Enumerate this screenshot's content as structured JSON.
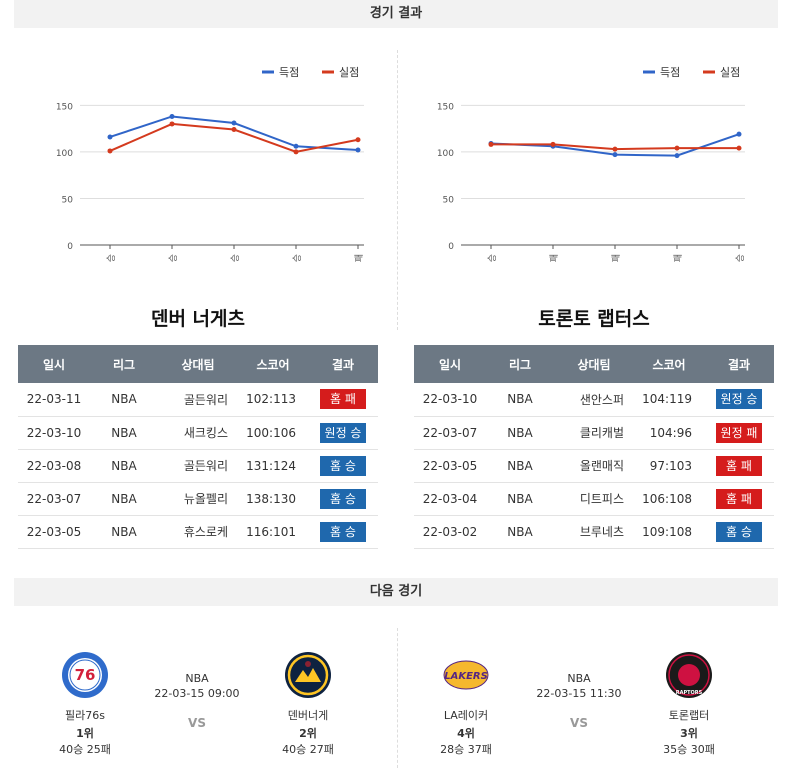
{
  "sections": {
    "results_title": "경기 결과",
    "next_title": "다음 경기"
  },
  "colors": {
    "scored": "#3065c8",
    "allowed": "#d43a1e",
    "win_badge": "#1f68ad",
    "loss_badge": "#d51c1c"
  },
  "chart_data": [
    {
      "type": "line",
      "categories": [
        "승",
        "승",
        "승",
        "승",
        "패"
      ],
      "series": [
        {
          "name": "득점",
          "values": [
            116,
            138,
            131,
            106,
            102
          ]
        },
        {
          "name": "실점",
          "values": [
            101,
            130,
            124,
            100,
            113
          ]
        }
      ],
      "yticks": [
        0,
        50,
        100,
        150
      ],
      "ylim": [
        0,
        160
      ],
      "legend": "top-right",
      "grid": true
    },
    {
      "type": "line",
      "categories": [
        "승",
        "패",
        "패",
        "패",
        "승"
      ],
      "series": [
        {
          "name": "득점",
          "values": [
            109,
            106,
            97,
            96,
            119
          ]
        },
        {
          "name": "실점",
          "values": [
            108,
            108,
            103,
            104,
            104
          ]
        }
      ],
      "yticks": [
        0,
        50,
        100,
        150
      ],
      "ylim": [
        0,
        160
      ],
      "legend": "top-right",
      "grid": true
    }
  ],
  "table_headers": [
    "일시",
    "리그",
    "상대팀",
    "스코어",
    "결과"
  ],
  "teams": [
    {
      "name": "덴버 너게츠",
      "games": [
        {
          "date": "22-03-11",
          "league": "NBA",
          "opponent": "골든워리",
          "score": "102:113",
          "result": "홈 패",
          "win": false
        },
        {
          "date": "22-03-10",
          "league": "NBA",
          "opponent": "새크킹스",
          "score": "100:106",
          "result": "원정 승",
          "win": true
        },
        {
          "date": "22-03-08",
          "league": "NBA",
          "opponent": "골든워리",
          "score": "131:124",
          "result": "홈 승",
          "win": true
        },
        {
          "date": "22-03-07",
          "league": "NBA",
          "opponent": "뉴올펠리",
          "score": "138:130",
          "result": "홈 승",
          "win": true
        },
        {
          "date": "22-03-05",
          "league": "NBA",
          "opponent": "휴스로케",
          "score": "116:101",
          "result": "홈 승",
          "win": true
        }
      ]
    },
    {
      "name": "토론토 랩터스",
      "games": [
        {
          "date": "22-03-10",
          "league": "NBA",
          "opponent": "샌안스퍼",
          "score": "104:119",
          "result": "원정 승",
          "win": true
        },
        {
          "date": "22-03-07",
          "league": "NBA",
          "opponent": "클리캐벌",
          "score": "104:96",
          "result": "원정 패",
          "win": false
        },
        {
          "date": "22-03-05",
          "league": "NBA",
          "opponent": "올랜매직",
          "score": "97:103",
          "result": "홈 패",
          "win": false
        },
        {
          "date": "22-03-04",
          "league": "NBA",
          "opponent": "디트피스",
          "score": "106:108",
          "result": "홈 패",
          "win": false
        },
        {
          "date": "22-03-02",
          "league": "NBA",
          "opponent": "브루네츠",
          "score": "109:108",
          "result": "홈 승",
          "win": true
        }
      ]
    }
  ],
  "next_games": [
    {
      "league": "NBA",
      "time": "22-03-15 09:00",
      "vs": "VS",
      "home": {
        "name": "필라76s",
        "rank": "1위",
        "record": "40승 25패",
        "logo_icon": "76ers-logo-icon",
        "logo_text": "76"
      },
      "away": {
        "name": "덴버너게",
        "rank": "2위",
        "record": "40승 27패",
        "logo_icon": "nuggets-logo-icon"
      }
    },
    {
      "league": "NBA",
      "time": "22-03-15 11:30",
      "vs": "VS",
      "home": {
        "name": "LA레이커",
        "rank": "4위",
        "record": "28승 37패",
        "logo_icon": "lakers-logo-icon",
        "logo_text": "LAKERS"
      },
      "away": {
        "name": "토론랩터",
        "rank": "3위",
        "record": "35승 30패",
        "logo_icon": "raptors-logo-icon",
        "logo_text": "RAPTORS"
      }
    }
  ]
}
